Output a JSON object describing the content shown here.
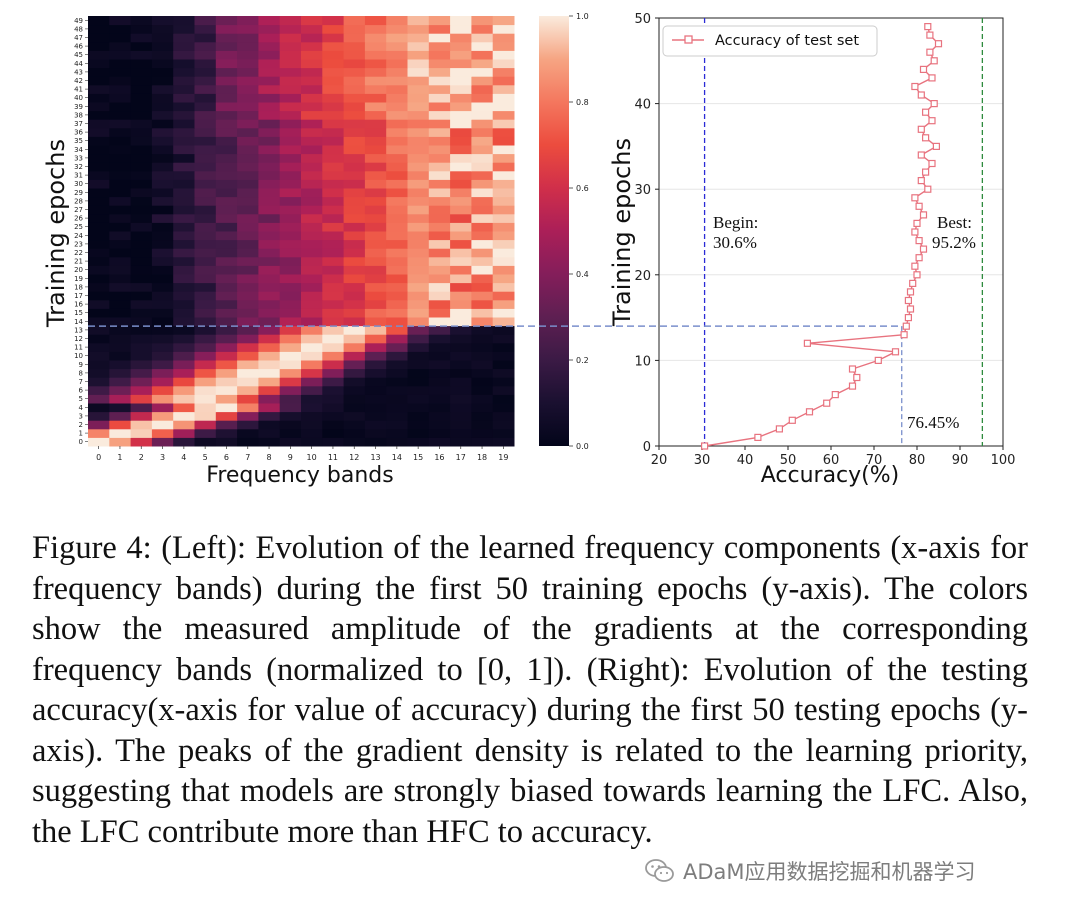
{
  "chart_data": [
    {
      "type": "heatmap",
      "xlabel": "Frequency bands",
      "ylabel": "Training epochs",
      "x_ticks": [
        0,
        1,
        2,
        3,
        4,
        5,
        6,
        7,
        8,
        9,
        10,
        11,
        12,
        13,
        14,
        15,
        16,
        17,
        18,
        19
      ],
      "y_ticks": [
        0,
        1,
        2,
        3,
        4,
        5,
        6,
        7,
        8,
        9,
        10,
        11,
        12,
        13,
        14,
        15,
        16,
        17,
        18,
        19,
        20,
        21,
        22,
        23,
        24,
        25,
        26,
        27,
        28,
        29,
        30,
        31,
        32,
        33,
        34,
        35,
        36,
        37,
        38,
        39,
        40,
        41,
        42,
        43,
        44,
        45,
        46,
        47,
        48,
        49
      ],
      "colorbar_ticks": [
        "0.0",
        "0.2",
        "0.4",
        "0.6",
        "0.8",
        "1.0"
      ],
      "colorbar_range": [
        0,
        1
      ],
      "colormap": "rocket",
      "description_of_pattern": {
        "epochs_0_4_peak_band": [
          0,
          1,
          2,
          3,
          4
        ],
        "epochs_5_13_peak_band_range": [
          5,
          15
        ],
        "epochs_14_49_bright_bands_range": [
          9,
          19
        ]
      }
    },
    {
      "type": "line",
      "xlabel": "Accuracy(%)",
      "ylabel": "Training epochs",
      "xlim": [
        20,
        100
      ],
      "ylim": [
        0,
        50
      ],
      "x_ticks": [
        20,
        30,
        40,
        50,
        60,
        70,
        80,
        90,
        100
      ],
      "y_ticks": [
        0,
        10,
        20,
        30,
        40,
        50
      ],
      "series": [
        {
          "name": "Accuracy of test set",
          "color": "#e8737f",
          "marker": "square",
          "x": [
            30.6,
            43,
            48,
            51,
            55,
            59,
            61,
            65,
            66,
            65,
            71,
            75,
            54.5,
            77,
            77.5,
            78,
            78.5,
            78,
            78.5,
            79,
            80,
            79.5,
            80.5,
            81.5,
            80.5,
            79.5,
            80,
            81.5,
            80.5,
            79.5,
            82.5,
            81,
            82,
            83.5,
            81,
            84.5,
            82,
            81,
            83.5,
            82,
            84,
            81,
            79.5,
            83.5,
            81.5,
            84,
            83,
            85,
            83,
            82.5
          ],
          "y": [
            0,
            1,
            2,
            3,
            4,
            5,
            6,
            7,
            8,
            9,
            10,
            11,
            12,
            13,
            14,
            15,
            16,
            17,
            18,
            19,
            20,
            21,
            22,
            23,
            24,
            25,
            26,
            27,
            28,
            29,
            30,
            31,
            32,
            33,
            34,
            35,
            36,
            37,
            38,
            39,
            40,
            41,
            42,
            43,
            44,
            45,
            46,
            47,
            48,
            49
          ]
        }
      ],
      "annotations": [
        {
          "text": "Begin:",
          "value": 30.6
        },
        {
          "text": "30.6%"
        },
        {
          "text": "Best:",
          "value": 95.2
        },
        {
          "text": "95.2%"
        },
        {
          "text": "76.45%",
          "value": 76.45
        }
      ],
      "vlines": [
        30.6,
        76.45,
        95.2
      ],
      "hline_epoch": 14
    }
  ],
  "caption": {
    "label": "Figure 4:",
    "text": "(Left): Evolution of the learned frequency components (x-axis for frequency bands) during the first 50 training epochs (y-axis). The colors show the measured amplitude of the gradients at the corresponding frequency bands (normalized to [0, 1]). (Right): Evolution of the testing accuracy(x-axis for value of accuracy) during the first 50 testing epochs (y-axis). The peaks of the gradient density is related to the learning priority, suggesting that models are strongly biased towards learning the LFC. Also, the LFC contribute more than HFC to accuracy."
  },
  "watermark": {
    "text": "ADaM应用数据挖掘和机器学习",
    "icon": "wechat-icon"
  }
}
